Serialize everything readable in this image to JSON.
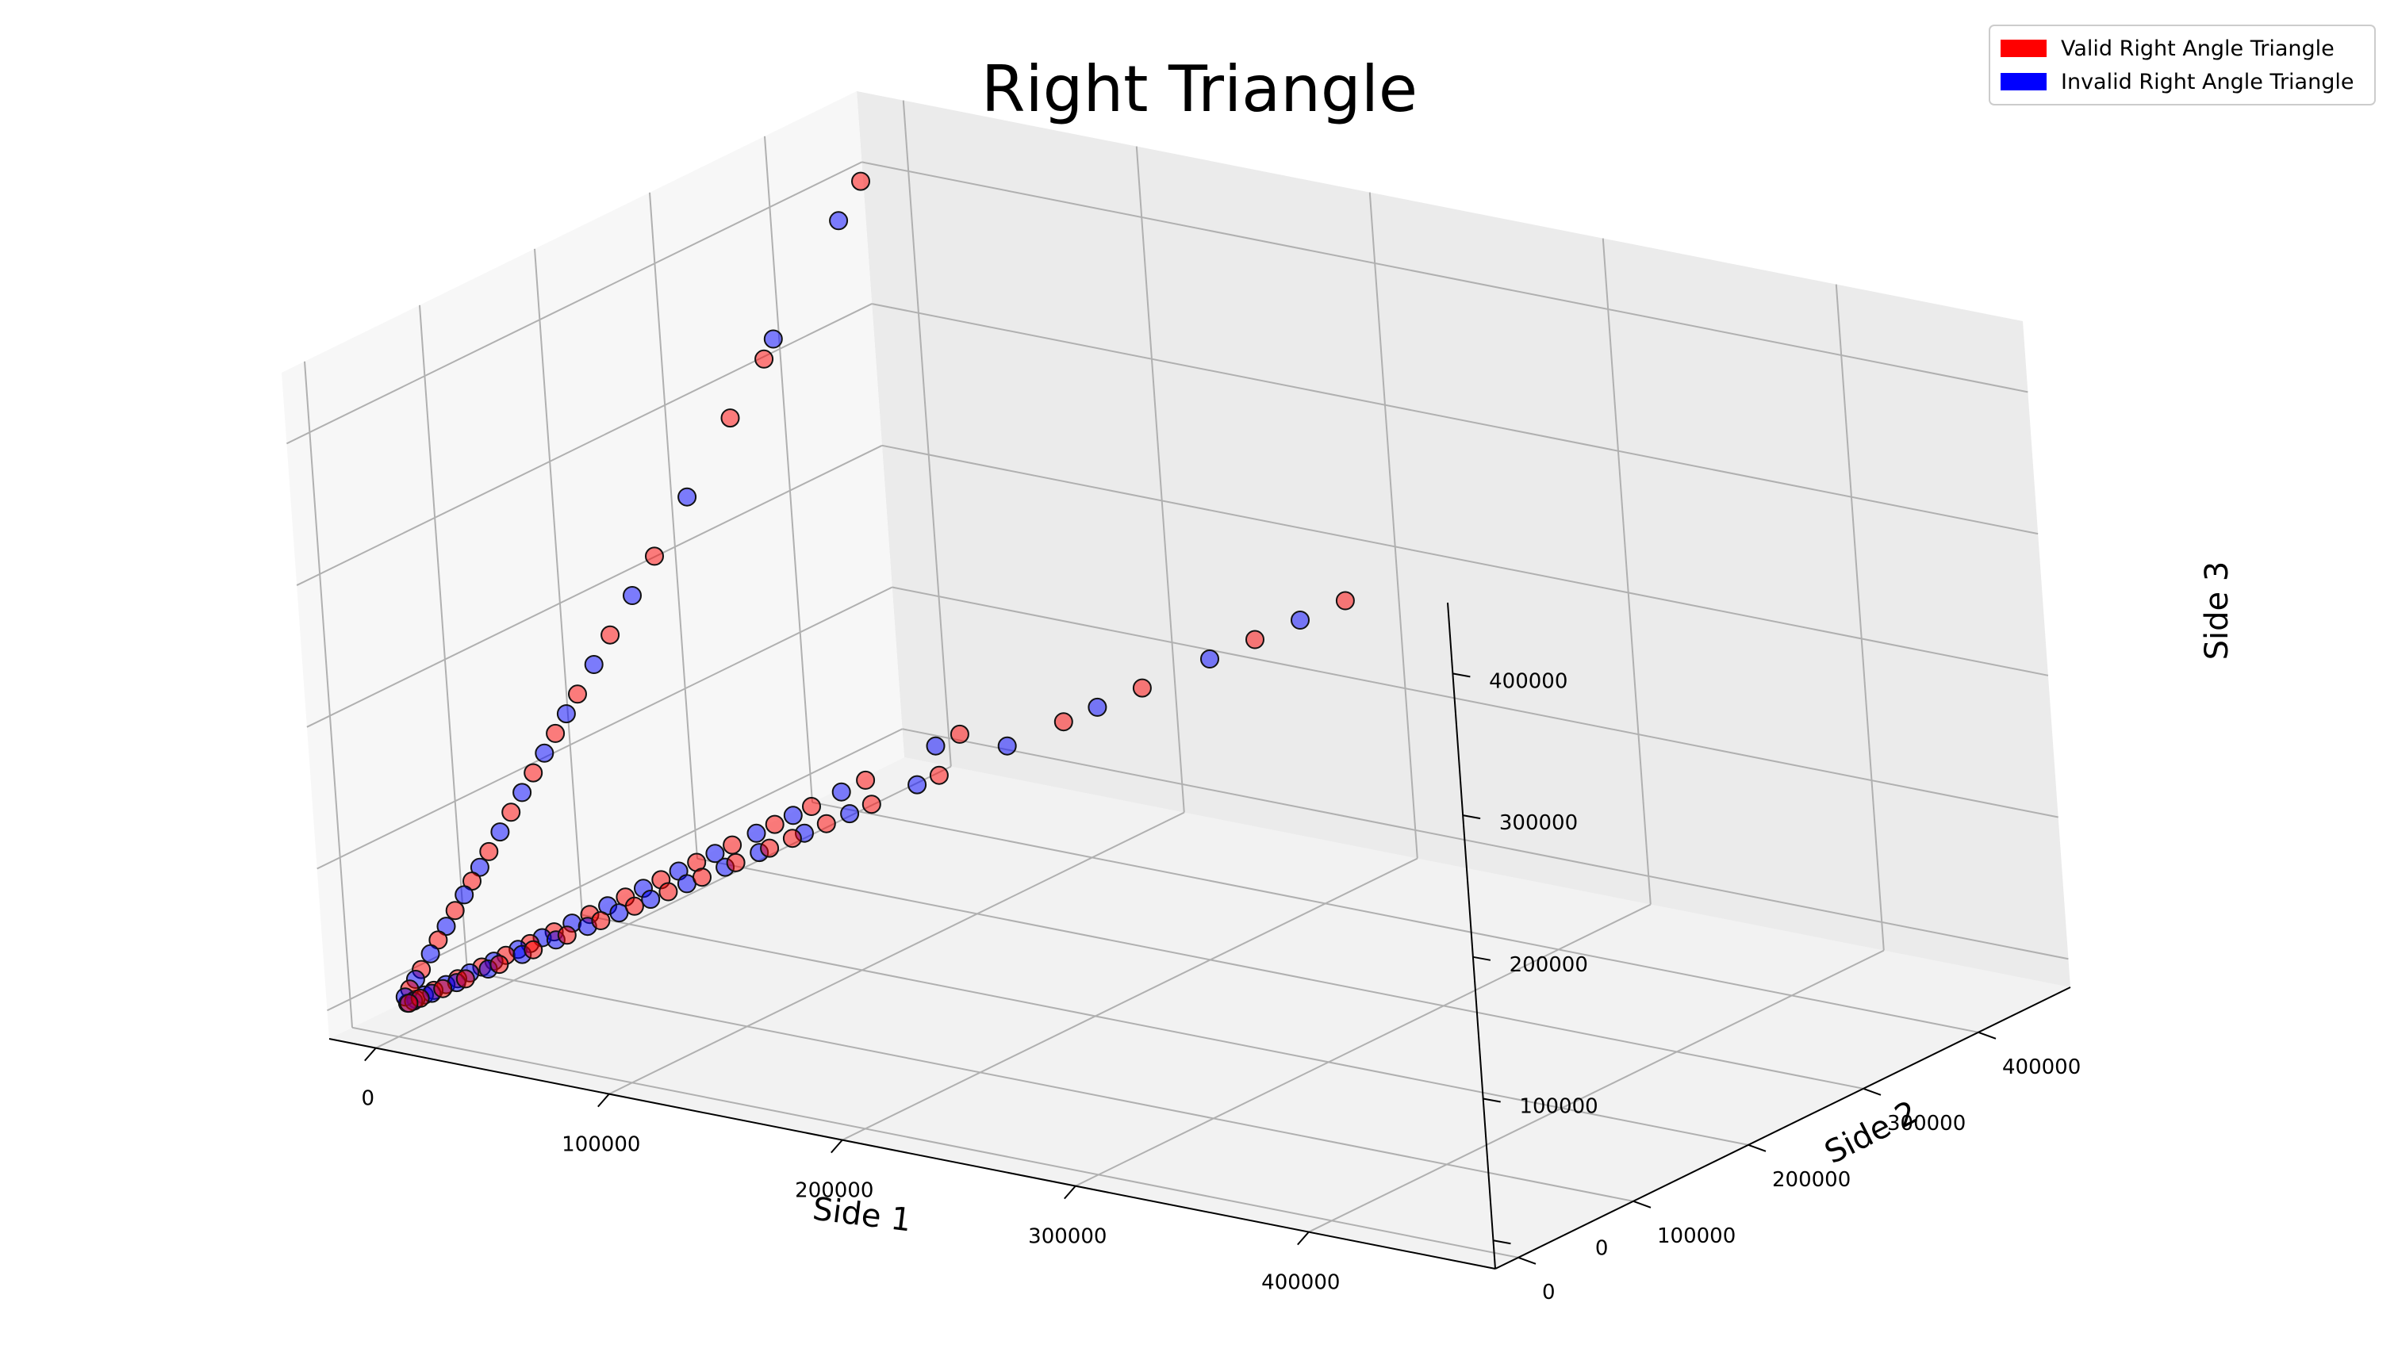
{
  "chart_data": {
    "type": "scatter",
    "projection": "3d",
    "title": "Right Triangle",
    "xlabel": "Side 1",
    "ylabel": "Side 2",
    "zlabel": "Side 3",
    "xlim": [
      -20000,
      480000
    ],
    "ylim": [
      -20000,
      480000
    ],
    "zlim": [
      -20000,
      450000
    ],
    "xticks": [
      0,
      100000,
      200000,
      300000,
      400000
    ],
    "yticks": [
      0,
      100000,
      200000,
      300000,
      400000
    ],
    "zticks": [
      0,
      100000,
      200000,
      300000,
      400000
    ],
    "grid": true,
    "legend_position": "top-right",
    "series": [
      {
        "name": "Valid Right Angle Triangle",
        "color": "#ff0000",
        "points": [
          [
            420000,
            10000,
            420000
          ],
          [
            380000,
            9000,
            380000
          ],
          [
            330000,
            8000,
            330000
          ],
          [
            295000,
            7500,
            295000
          ],
          [
            240000,
            6000,
            240000
          ],
          [
            210000,
            5500,
            210000
          ],
          [
            190000,
            5000,
            190000
          ],
          [
            175000,
            4500,
            175000
          ],
          [
            165000,
            4000,
            165000
          ],
          [
            150000,
            3800,
            150000
          ],
          [
            135000,
            3500,
            135000
          ],
          [
            120000,
            3200,
            120000
          ],
          [
            105000,
            3000,
            105000
          ],
          [
            90000,
            2800,
            90000
          ],
          [
            75000,
            2500,
            75000
          ],
          [
            60000,
            2200,
            60000
          ],
          [
            45000,
            1800,
            45000
          ],
          [
            30000,
            1500,
            30000
          ],
          [
            20000,
            1200,
            20000
          ],
          [
            10000,
            900,
            10000
          ],
          [
            5000,
            800,
            5000
          ],
          [
            10000,
            420000,
            420000
          ],
          [
            9000,
            330000,
            330000
          ],
          [
            8000,
            300000,
            300000
          ],
          [
            7000,
            230000,
            230000
          ],
          [
            6000,
            190000,
            190000
          ],
          [
            5500,
            160000,
            160000
          ],
          [
            5000,
            140000,
            140000
          ],
          [
            4500,
            120000,
            120000
          ],
          [
            4000,
            100000,
            100000
          ],
          [
            3500,
            80000,
            80000
          ],
          [
            3000,
            65000,
            65000
          ],
          [
            2500,
            50000,
            50000
          ],
          [
            2000,
            35000,
            35000
          ],
          [
            1500,
            20000,
            20000
          ],
          [
            1000,
            10000,
            10000
          ],
          [
            10000,
            470000,
            10000
          ],
          [
            9000,
            390000,
            9000
          ],
          [
            8000,
            345000,
            8000
          ],
          [
            7000,
            315000,
            7000
          ],
          [
            6000,
            280000,
            6000
          ],
          [
            5500,
            250000,
            5500
          ],
          [
            5000,
            220000,
            5000
          ],
          [
            4500,
            190000,
            4500
          ],
          [
            4000,
            160000,
            4000
          ],
          [
            3500,
            130000,
            3500
          ],
          [
            3000,
            110000,
            3000
          ],
          [
            2500,
            90000,
            2500
          ],
          [
            2000,
            70000,
            2000
          ],
          [
            1500,
            50000,
            1500
          ],
          [
            1200,
            30000,
            1200
          ],
          [
            800,
            15000,
            800
          ]
        ]
      },
      {
        "name": "Invalid Right Angle Triangle",
        "color": "#0000ff",
        "points": [
          [
            400000,
            9500,
            400000
          ],
          [
            360000,
            8500,
            360000
          ],
          [
            310000,
            7800,
            310000
          ],
          [
            270000,
            7000,
            270000
          ],
          [
            230000,
            6200,
            230000
          ],
          [
            200000,
            5800,
            200000
          ],
          [
            180000,
            5200,
            180000
          ],
          [
            160000,
            4800,
            160000
          ],
          [
            145000,
            4200,
            145000
          ],
          [
            128000,
            3900,
            128000
          ],
          [
            112000,
            3400,
            112000
          ],
          [
            98000,
            3100,
            98000
          ],
          [
            84000,
            2900,
            84000
          ],
          [
            70000,
            2600,
            70000
          ],
          [
            55000,
            2300,
            55000
          ],
          [
            40000,
            1900,
            40000
          ],
          [
            26000,
            1600,
            26000
          ],
          [
            15000,
            1300,
            15000
          ],
          [
            7000,
            1000,
            7000
          ],
          [
            9500,
            400000,
            400000
          ],
          [
            8500,
            340000,
            340000
          ],
          [
            7500,
            260000,
            260000
          ],
          [
            6500,
            210000,
            210000
          ],
          [
            5800,
            175000,
            175000
          ],
          [
            5200,
            150000,
            150000
          ],
          [
            4800,
            130000,
            130000
          ],
          [
            4200,
            110000,
            110000
          ],
          [
            3800,
            90000,
            90000
          ],
          [
            3200,
            72000,
            72000
          ],
          [
            2800,
            58000,
            58000
          ],
          [
            2300,
            42000,
            42000
          ],
          [
            1800,
            28000,
            28000
          ],
          [
            1300,
            15000,
            15000
          ],
          [
            900,
            6000,
            6000
          ],
          [
            9500,
            450000,
            9500
          ],
          [
            8500,
            370000,
            8500
          ],
          [
            7500,
            330000,
            7500
          ],
          [
            6500,
            300000,
            6500
          ],
          [
            6000,
            265000,
            6000
          ],
          [
            5200,
            235000,
            5200
          ],
          [
            4800,
            205000,
            4800
          ],
          [
            4300,
            175000,
            4300
          ],
          [
            3800,
            145000,
            3800
          ],
          [
            3300,
            120000,
            3300
          ],
          [
            2800,
            100000,
            2800
          ],
          [
            2300,
            80000,
            2300
          ],
          [
            1800,
            60000,
            1800
          ],
          [
            1400,
            40000,
            1400
          ],
          [
            1000,
            22000,
            1000
          ],
          [
            700,
            8000,
            700
          ]
        ]
      }
    ]
  }
}
